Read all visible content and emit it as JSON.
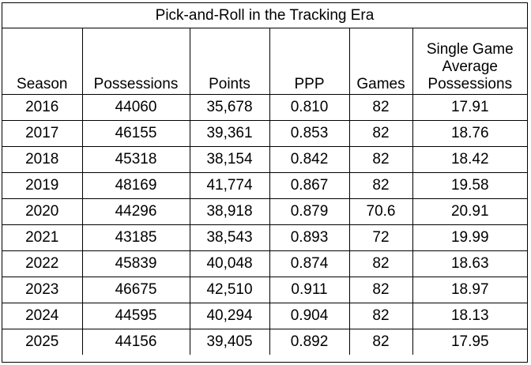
{
  "chart_data": {
    "type": "table",
    "title": "Pick-and-Roll in the Tracking Era",
    "columns": [
      "Season",
      "Possessions",
      "Points",
      "PPP",
      "Games",
      "Single Game Average Possessions"
    ],
    "column_header_lines": {
      "last": [
        "Single Game",
        "Average",
        "Possessions"
      ]
    },
    "rows": [
      [
        "2016",
        "44060",
        "35,678",
        "0.810",
        "82",
        "17.91"
      ],
      [
        "2017",
        "46155",
        "39,361",
        "0.853",
        "82",
        "18.76"
      ],
      [
        "2018",
        "45318",
        "38,154",
        "0.842",
        "82",
        "18.42"
      ],
      [
        "2019",
        "48169",
        "41,774",
        "0.867",
        "82",
        "19.58"
      ],
      [
        "2020",
        "44296",
        "38,918",
        "0.879",
        "70.6",
        "20.91"
      ],
      [
        "2021",
        "43185",
        "38,543",
        "0.893",
        "72",
        "19.99"
      ],
      [
        "2022",
        "45839",
        "40,048",
        "0.874",
        "82",
        "18.63"
      ],
      [
        "2023",
        "46675",
        "42,510",
        "0.911",
        "82",
        "18.97"
      ],
      [
        "2024",
        "44595",
        "40,294",
        "0.904",
        "82",
        "18.13"
      ],
      [
        "2025",
        "44156",
        "39,405",
        "0.892",
        "82",
        "17.95"
      ]
    ]
  }
}
